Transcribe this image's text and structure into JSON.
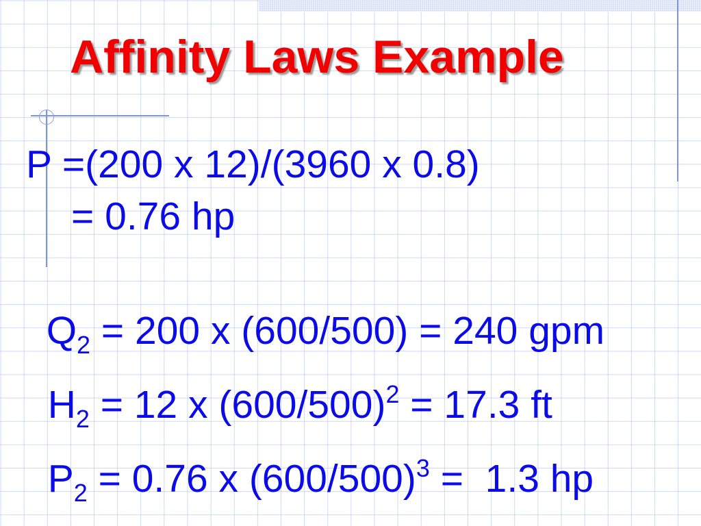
{
  "slide": {
    "title": "Affinity Laws Example",
    "title_color": "#f20000",
    "text_color": "#0b0be8",
    "lines": [
      {
        "parts": [
          "P ",
          "=(200 x 12)/(3960 x 0.8)"
        ]
      },
      {
        "parts": [
          "= 0.76 hp"
        ]
      },
      {
        "var": "Q",
        "sub": "2",
        "rest": " = 200 x (600/500) = 240 gpm"
      },
      {
        "var": "H",
        "sub": "2",
        "mid": " = 12 x (600/500)",
        "sup": "2",
        "rest": " = 17.3 ft"
      },
      {
        "var": "P",
        "sub": "2",
        "mid": " = 0.76 x (600/500)",
        "sup": "3",
        "rest": " =  1.3 hp"
      }
    ]
  }
}
